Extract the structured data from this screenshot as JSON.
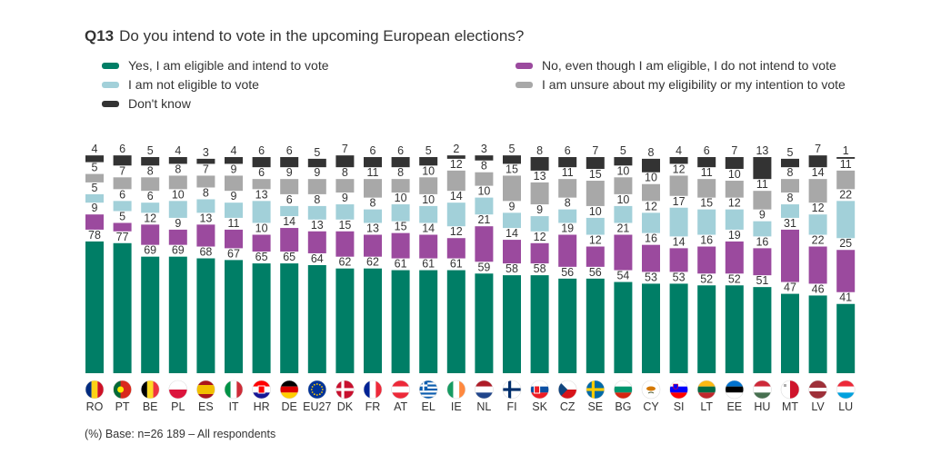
{
  "title_code": "Q13",
  "title": "Do you intend to vote in the upcoming European elections?",
  "footnote": "(%) Base: n=26 189 – All respondents",
  "colors": {
    "yes": "#007e66",
    "no": "#9b4a9e",
    "not_eligible": "#a2d0d9",
    "unsure": "#a8a8a8",
    "dont_know": "#333333"
  },
  "legend": [
    {
      "key": "yes",
      "label": "Yes, I am eligible and intend to vote"
    },
    {
      "key": "no",
      "label": "No, even though I am eligible, I do not intend to vote"
    },
    {
      "key": "not_eligible",
      "label": "I am not eligible to vote"
    },
    {
      "key": "unsure",
      "label": "I am unsure about my eligibility or my intention to vote"
    },
    {
      "key": "dont_know",
      "label": "Don't know"
    }
  ],
  "chart_data": {
    "type": "bar",
    "stacked": true,
    "unit": "%",
    "categories": [
      "RO",
      "PT",
      "BE",
      "PL",
      "ES",
      "IT",
      "HR",
      "DE",
      "EU27",
      "DK",
      "FR",
      "AT",
      "EL",
      "IE",
      "NL",
      "FI",
      "SK",
      "CZ",
      "SE",
      "BG",
      "CY",
      "SI",
      "LT",
      "EE",
      "HU",
      "MT",
      "LV",
      "LU"
    ],
    "flags": [
      "flag-ro",
      "flag-pt",
      "flag-be",
      "flag-pl",
      "flag-es",
      "flag-it",
      "flag-hr",
      "flag-de",
      "flag-eu",
      "flag-dk",
      "flag-fr",
      "flag-at",
      "flag-el",
      "flag-ie",
      "flag-nl",
      "flag-fi",
      "flag-sk",
      "flag-cz",
      "flag-se",
      "flag-bg",
      "flag-cy",
      "flag-si",
      "flag-lt",
      "flag-ee",
      "flag-hu",
      "flag-mt",
      "flag-lv",
      "flag-lu"
    ],
    "series": [
      {
        "key": "yes",
        "name": "Yes, I am eligible and intend to vote",
        "values": [
          78,
          77,
          69,
          69,
          68,
          67,
          65,
          65,
          64,
          62,
          62,
          61,
          61,
          61,
          59,
          58,
          58,
          56,
          56,
          54,
          53,
          53,
          52,
          52,
          51,
          47,
          46,
          41
        ]
      },
      {
        "key": "no",
        "name": "No, even though I am eligible, I do not intend to vote",
        "values": [
          9,
          5,
          12,
          9,
          13,
          11,
          10,
          14,
          13,
          15,
          13,
          15,
          14,
          12,
          21,
          14,
          12,
          19,
          12,
          21,
          16,
          14,
          16,
          19,
          16,
          31,
          22,
          25
        ]
      },
      {
        "key": "not_eligible",
        "name": "I am not eligible to vote",
        "values": [
          5,
          6,
          6,
          10,
          8,
          9,
          13,
          6,
          8,
          9,
          8,
          10,
          10,
          14,
          10,
          9,
          9,
          8,
          10,
          10,
          12,
          17,
          15,
          12,
          9,
          8,
          12,
          22
        ]
      },
      {
        "key": "unsure",
        "name": "I am unsure about my eligibility or my intention to vote",
        "values": [
          5,
          7,
          8,
          8,
          7,
          9,
          6,
          9,
          9,
          8,
          11,
          8,
          10,
          12,
          8,
          15,
          13,
          11,
          15,
          10,
          10,
          12,
          11,
          10,
          11,
          8,
          14,
          11
        ]
      },
      {
        "key": "dont_know",
        "name": "Don't know",
        "values": [
          4,
          6,
          5,
          4,
          3,
          4,
          6,
          6,
          5,
          7,
          6,
          6,
          5,
          2,
          3,
          5,
          8,
          6,
          7,
          5,
          8,
          4,
          6,
          7,
          13,
          5,
          7,
          1
        ]
      }
    ],
    "ylim": [
      0,
      100
    ],
    "grid": false,
    "legend_position": "top"
  }
}
